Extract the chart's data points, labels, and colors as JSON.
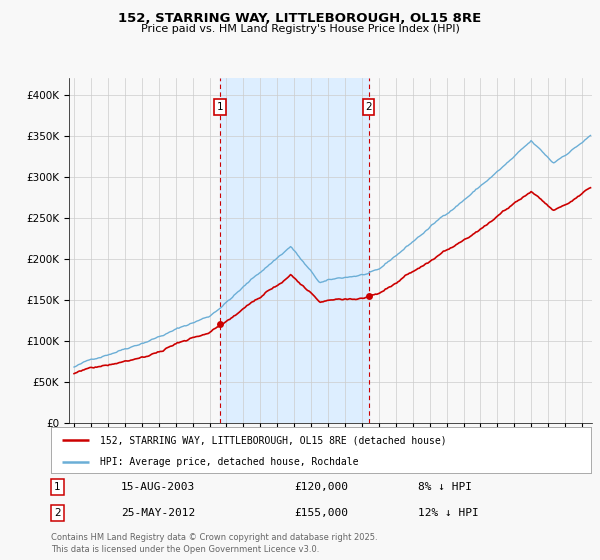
{
  "title": "152, STARRING WAY, LITTLEBOROUGH, OL15 8RE",
  "subtitle": "Price paid vs. HM Land Registry's House Price Index (HPI)",
  "legend_line1": "152, STARRING WAY, LITTLEBOROUGH, OL15 8RE (detached house)",
  "legend_line2": "HPI: Average price, detached house, Rochdale",
  "purchase1_date": "15-AUG-2003",
  "purchase1_price": 120000,
  "purchase1_label": "8% ↓ HPI",
  "purchase2_date": "25-MAY-2012",
  "purchase2_price": 155000,
  "purchase2_label": "12% ↓ HPI",
  "purchase1_year": 2003.62,
  "purchase2_year": 2012.39,
  "hpi_color": "#6baed6",
  "property_color": "#cc0000",
  "shade_color": "#ddeeff",
  "background_color": "#f8f8f8",
  "grid_color": "#cccccc",
  "footnote1": "Contains HM Land Registry data © Crown copyright and database right 2025.",
  "footnote2": "This data is licensed under the Open Government Licence v3.0.",
  "ylim": [
    0,
    420000
  ],
  "yticks": [
    0,
    50000,
    100000,
    150000,
    200000,
    250000,
    300000,
    350000,
    400000
  ],
  "ytick_labels": [
    "£0",
    "£50K",
    "£100K",
    "£150K",
    "£200K",
    "£250K",
    "£300K",
    "£350K",
    "£400K"
  ],
  "xlim_start": 1994.7,
  "xlim_end": 2025.6
}
